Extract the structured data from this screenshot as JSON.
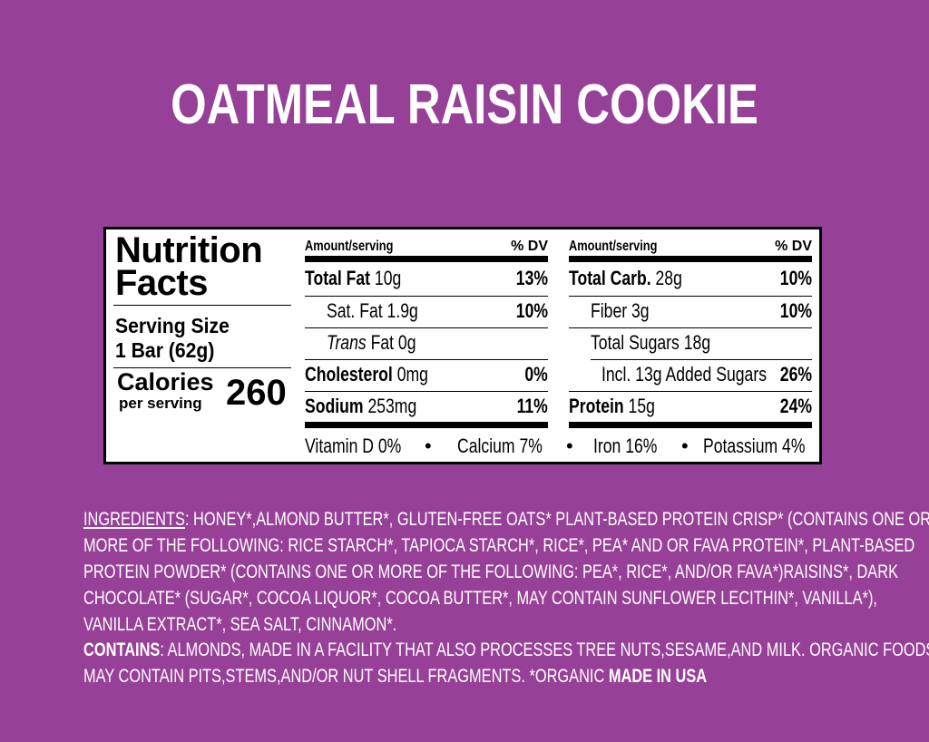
{
  "title": "OATMEAL RAISIN COOKIE",
  "colors": {
    "background": "#974098",
    "panel": "#ffffff",
    "text_on_panel": "#000000",
    "text_on_background": "#ffffff"
  },
  "facts": {
    "heading_line1": "Nutrition",
    "heading_line2": "Facts",
    "serving_size_label": "Serving Size",
    "serving_size_value": "1 Bar (62g)",
    "calories_label": "Calories",
    "per_serving": "per serving",
    "calories_value": "260"
  },
  "left_table": {
    "header_amount": "Amount/serving",
    "header_dv": "% DV",
    "rows": [
      {
        "name": "Total Fat",
        "amount": "10g",
        "dv": "13%"
      },
      {
        "name": "Sat. Fat",
        "amount": "1.9g",
        "dv": "10%"
      },
      {
        "name": "Trans",
        "amount": "Fat 0g",
        "dv": ""
      },
      {
        "name": "Cholesterol",
        "amount": "0mg",
        "dv": "0%"
      },
      {
        "name": "Sodium",
        "amount": "253mg",
        "dv": "11%"
      }
    ]
  },
  "right_table": {
    "header_amount": "Amount/serving",
    "header_dv": "% DV",
    "rows": [
      {
        "name": "Total Carb.",
        "amount": "28g",
        "dv": "10%"
      },
      {
        "name": "Fiber",
        "amount": "3g",
        "dv": "10%"
      },
      {
        "name": "Total Sugars",
        "amount": "18g",
        "dv": ""
      },
      {
        "name": "Incl. 13g Added Sugars",
        "amount": "",
        "dv": "26%"
      },
      {
        "name": "Protein",
        "amount": "15g",
        "dv": "24%"
      }
    ]
  },
  "micronutrients": [
    {
      "label": "Vitamin D 0%"
    },
    {
      "label": "Calcium 7%"
    },
    {
      "label": "Iron 16%"
    },
    {
      "label": "Potassium 4%"
    }
  ],
  "bullet": "•",
  "ingredients": {
    "label": "INGREDIENTS",
    "lines": [
      ": HONEY*,ALMOND BUTTER*, GLUTEN-FREE OATS* PLANT-BASED PROTEIN CRISP* (CONTAINS ONE OR",
      "MORE OF THE FOLLOWING: RICE STARCH*, TAPIOCA STARCH*, RICE*, PEA* AND OR FAVA PROTEIN*, PLANT-BASED",
      "PROTEIN POWDER* (CONTAINS ONE OR MORE OF THE FOLLOWING: PEA*, RICE*, AND/OR FAVA*)RAISINS*, DARK",
      "CHOCOLATE* (SUGAR*, COCOA LIQUOR*, COCOA BUTTER*, MAY CONTAIN SUNFLOWER LECITHIN*, VANILLA*),",
      "VANILLA EXTRACT*, SEA SALT, CINNAMON*."
    ],
    "contains_label": "CONTAINS",
    "contains_line1": ": ALMONDS, MADE IN A FACILITY THAT ALSO PROCESSES TREE NUTS,SESAME,AND MILK. ORGANIC FOODS",
    "contains_line2": "MAY CONTAIN PITS,STEMS,AND/OR NUT SHELL FRAGMENTS. *ORGANIC ",
    "made_in": "MADE IN USA"
  }
}
